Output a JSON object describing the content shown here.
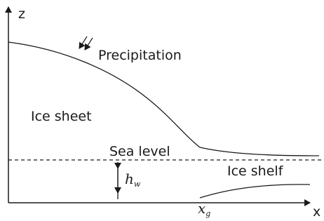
{
  "axes": {
    "vertical": "z",
    "horizontal": "x"
  },
  "labels": {
    "precipitation": "Precipitation",
    "ice_sheet": "Ice sheet",
    "sea_level": "Sea level",
    "ice_shelf": "Ice shelf"
  },
  "water_depth": {
    "symbol": "h",
    "subscript": "w"
  },
  "grounding_line": {
    "symbol": "x",
    "subscript": "g"
  }
}
